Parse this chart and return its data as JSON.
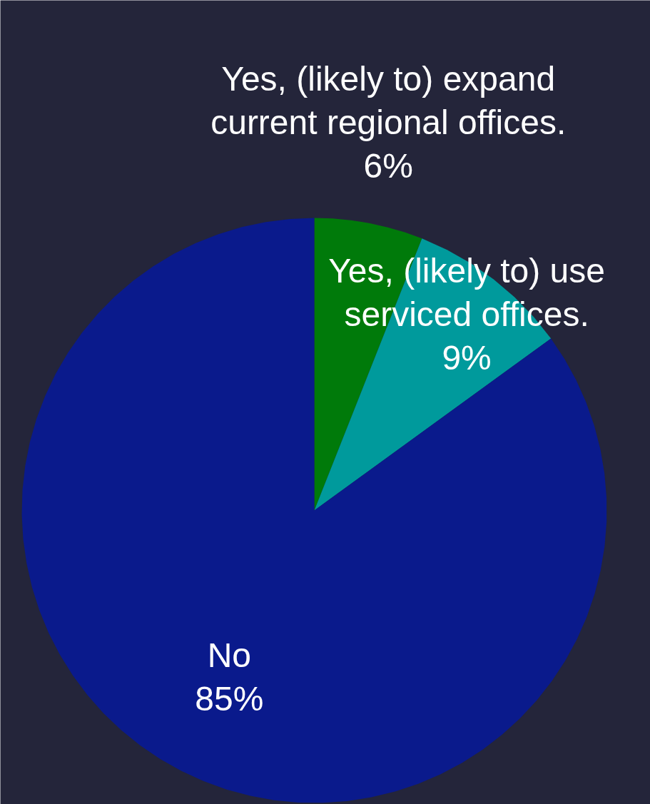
{
  "chart_data": {
    "type": "pie",
    "categories": [
      "Yes, (likely to) expand current regional offices.",
      "Yes, (likely to) use serviced offices.",
      "No"
    ],
    "values": [
      6,
      9,
      85
    ],
    "colors": [
      "#007a0a",
      "#009a9c",
      "#0a1a8c"
    ],
    "value_labels": [
      "6%",
      "9%",
      "85%"
    ]
  }
}
